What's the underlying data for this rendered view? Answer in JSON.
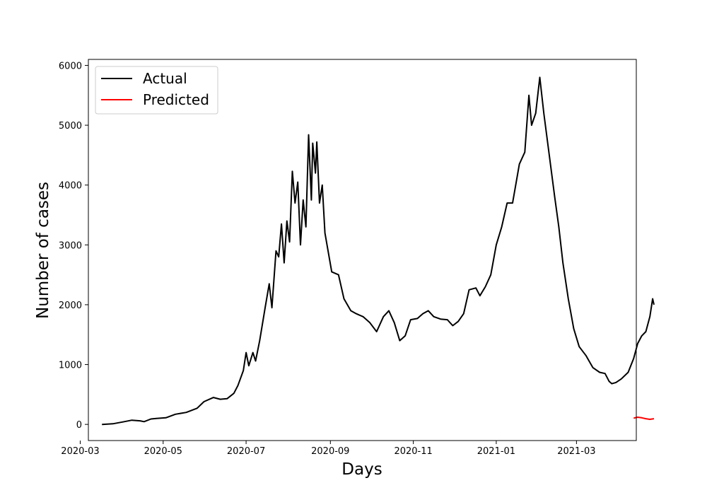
{
  "chart_data": {
    "type": "line",
    "title": "",
    "xlabel": "Days",
    "ylabel": "Number of cases",
    "xlim": [
      "2020-03-07",
      "2021-04-14"
    ],
    "ylim": [
      -270,
      6100
    ],
    "x_ticks": [
      "2020-03",
      "2020-05",
      "2020-07",
      "2020-09",
      "2020-11",
      "2021-01",
      "2021-03"
    ],
    "y_ticks": [
      0,
      1000,
      2000,
      3000,
      4000,
      5000,
      6000
    ],
    "grid": false,
    "legend_position": "top-left",
    "series": [
      {
        "name": "Actual",
        "color": "#000000",
        "points": [
          [
            "2020-03-17",
            0
          ],
          [
            "2020-03-25",
            10
          ],
          [
            "2020-04-01",
            40
          ],
          [
            "2020-04-08",
            70
          ],
          [
            "2020-04-14",
            60
          ],
          [
            "2020-04-17",
            45
          ],
          [
            "2020-04-22",
            90
          ],
          [
            "2020-04-26",
            100
          ],
          [
            "2020-05-03",
            110
          ],
          [
            "2020-05-10",
            170
          ],
          [
            "2020-05-18",
            200
          ],
          [
            "2020-05-26",
            270
          ],
          [
            "2020-05-31",
            380
          ],
          [
            "2020-06-07",
            450
          ],
          [
            "2020-06-12",
            420
          ],
          [
            "2020-06-17",
            430
          ],
          [
            "2020-06-22",
            520
          ],
          [
            "2020-06-25",
            650
          ],
          [
            "2020-06-29",
            900
          ],
          [
            "2020-07-01",
            1200
          ],
          [
            "2020-07-03",
            980
          ],
          [
            "2020-07-06",
            1200
          ],
          [
            "2020-07-08",
            1060
          ],
          [
            "2020-07-11",
            1400
          ],
          [
            "2020-07-15",
            1950
          ],
          [
            "2020-07-18",
            2350
          ],
          [
            "2020-07-20",
            1950
          ],
          [
            "2020-07-23",
            2900
          ],
          [
            "2020-07-25",
            2800
          ],
          [
            "2020-07-27",
            3350
          ],
          [
            "2020-07-29",
            2700
          ],
          [
            "2020-07-31",
            3400
          ],
          [
            "2020-08-02",
            3050
          ],
          [
            "2020-08-04",
            4230
          ],
          [
            "2020-08-06",
            3700
          ],
          [
            "2020-08-08",
            4050
          ],
          [
            "2020-08-10",
            3000
          ],
          [
            "2020-08-12",
            3750
          ],
          [
            "2020-08-14",
            3300
          ],
          [
            "2020-08-16",
            4840
          ],
          [
            "2020-08-18",
            3750
          ],
          [
            "2020-08-19",
            4700
          ],
          [
            "2020-08-21",
            4200
          ],
          [
            "2020-08-22",
            4720
          ],
          [
            "2020-08-24",
            3700
          ],
          [
            "2020-08-26",
            4000
          ],
          [
            "2020-08-28",
            3200
          ],
          [
            "2020-09-02",
            2550
          ],
          [
            "2020-09-07",
            2500
          ],
          [
            "2020-09-11",
            2100
          ],
          [
            "2020-09-16",
            1900
          ],
          [
            "2020-09-20",
            1850
          ],
          [
            "2020-09-25",
            1800
          ],
          [
            "2020-09-30",
            1700
          ],
          [
            "2020-10-05",
            1550
          ],
          [
            "2020-10-10",
            1800
          ],
          [
            "2020-10-14",
            1900
          ],
          [
            "2020-10-18",
            1700
          ],
          [
            "2020-10-22",
            1400
          ],
          [
            "2020-10-26",
            1480
          ],
          [
            "2020-10-30",
            1750
          ],
          [
            "2020-11-04",
            1770
          ],
          [
            "2020-11-08",
            1850
          ],
          [
            "2020-11-12",
            1900
          ],
          [
            "2020-11-16",
            1800
          ],
          [
            "2020-11-21",
            1760
          ],
          [
            "2020-11-26",
            1750
          ],
          [
            "2020-11-30",
            1650
          ],
          [
            "2020-12-04",
            1720
          ],
          [
            "2020-12-08",
            1850
          ],
          [
            "2020-12-12",
            2250
          ],
          [
            "2020-12-17",
            2280
          ],
          [
            "2020-12-20",
            2150
          ],
          [
            "2020-12-24",
            2300
          ],
          [
            "2020-12-28",
            2500
          ],
          [
            "2021-01-01",
            3000
          ],
          [
            "2021-01-05",
            3300
          ],
          [
            "2021-01-09",
            3700
          ],
          [
            "2021-01-13",
            3700
          ],
          [
            "2021-01-18",
            4350
          ],
          [
            "2021-01-22",
            4550
          ],
          [
            "2021-01-25",
            5500
          ],
          [
            "2021-01-27",
            5000
          ],
          [
            "2021-01-30",
            5200
          ],
          [
            "2021-02-02",
            5800
          ],
          [
            "2021-02-05",
            5200
          ],
          [
            "2021-02-09",
            4500
          ],
          [
            "2021-02-13",
            3800
          ],
          [
            "2021-02-16",
            3300
          ],
          [
            "2021-02-19",
            2700
          ],
          [
            "2021-02-23",
            2100
          ],
          [
            "2021-02-27",
            1600
          ],
          [
            "2021-03-03",
            1300
          ],
          [
            "2021-03-08",
            1150
          ],
          [
            "2021-03-13",
            950
          ],
          [
            "2021-03-18",
            870
          ],
          [
            "2021-03-22",
            850
          ],
          [
            "2021-03-25",
            720
          ],
          [
            "2021-03-27",
            680
          ],
          [
            "2021-03-30",
            700
          ],
          [
            "2021-04-03",
            760
          ],
          [
            "2021-04-08",
            870
          ],
          [
            "2021-04-12",
            1100
          ],
          [
            "2021-04-15",
            1350
          ],
          [
            "2021-04-18",
            1480
          ],
          [
            "2021-04-21",
            1550
          ],
          [
            "2021-04-24",
            1800
          ],
          [
            "2021-04-26",
            2100
          ],
          [
            "2021-04-27",
            2000
          ]
        ]
      },
      {
        "name": "Predicted",
        "color": "#ff0000",
        "points": [
          [
            "2021-04-12",
            105
          ],
          [
            "2021-04-15",
            120
          ],
          [
            "2021-04-18",
            110
          ],
          [
            "2021-04-21",
            95
          ],
          [
            "2021-04-24",
            85
          ],
          [
            "2021-04-27",
            95
          ]
        ]
      }
    ]
  }
}
